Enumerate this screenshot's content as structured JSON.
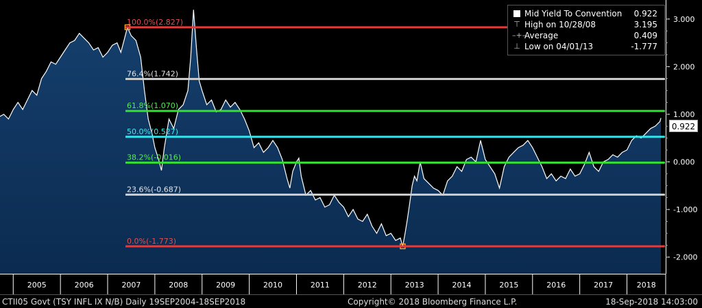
{
  "chart_data": {
    "type": "line",
    "title": "",
    "xlabel": "",
    "ylabel": "",
    "ylim": [
      -2.35,
      3.4
    ],
    "x_ticks": [
      "2005",
      "2006",
      "2007",
      "2008",
      "2009",
      "2010",
      "2011",
      "2012",
      "2013",
      "2014",
      "2015",
      "2016",
      "2017",
      "2018"
    ],
    "y_ticks": [
      "3.000",
      "2.000",
      "1.000",
      "0.000",
      "-1.000",
      "-2.000"
    ],
    "current_value": "0.922",
    "grid": false,
    "legend_placement": "top-right",
    "series": [
      {
        "name": "Mid Yield To Convention",
        "color": "#ffffff",
        "fill": "#0b2b50",
        "points": [
          [
            2004.71,
            0.95
          ],
          [
            2004.8,
            1.0
          ],
          [
            2004.9,
            0.9
          ],
          [
            2005.0,
            1.1
          ],
          [
            2005.1,
            1.25
          ],
          [
            2005.2,
            1.1
          ],
          [
            2005.3,
            1.3
          ],
          [
            2005.4,
            1.5
          ],
          [
            2005.5,
            1.4
          ],
          [
            2005.6,
            1.75
          ],
          [
            2005.7,
            1.9
          ],
          [
            2005.8,
            2.1
          ],
          [
            2005.9,
            2.05
          ],
          [
            2006.0,
            2.2
          ],
          [
            2006.1,
            2.35
          ],
          [
            2006.2,
            2.5
          ],
          [
            2006.3,
            2.55
          ],
          [
            2006.4,
            2.7
          ],
          [
            2006.5,
            2.6
          ],
          [
            2006.6,
            2.5
          ],
          [
            2006.7,
            2.35
          ],
          [
            2006.8,
            2.4
          ],
          [
            2006.9,
            2.2
          ],
          [
            2007.0,
            2.3
          ],
          [
            2007.1,
            2.45
          ],
          [
            2007.2,
            2.5
          ],
          [
            2007.28,
            2.3
          ],
          [
            2007.36,
            2.6
          ],
          [
            2007.42,
            2.83
          ],
          [
            2007.5,
            2.65
          ],
          [
            2007.6,
            2.55
          ],
          [
            2007.7,
            2.2
          ],
          [
            2007.78,
            1.5
          ],
          [
            2007.86,
            0.9
          ],
          [
            2007.94,
            0.6
          ],
          [
            2008.0,
            0.3
          ],
          [
            2008.08,
            0.05
          ],
          [
            2008.14,
            -0.18
          ],
          [
            2008.2,
            0.3
          ],
          [
            2008.3,
            0.9
          ],
          [
            2008.4,
            0.7
          ],
          [
            2008.5,
            1.1
          ],
          [
            2008.6,
            1.2
          ],
          [
            2008.7,
            1.5
          ],
          [
            2008.76,
            2.2
          ],
          [
            2008.82,
            3.195
          ],
          [
            2008.88,
            2.4
          ],
          [
            2008.94,
            1.7
          ],
          [
            2009.0,
            1.5
          ],
          [
            2009.1,
            1.2
          ],
          [
            2009.2,
            1.3
          ],
          [
            2009.3,
            1.05
          ],
          [
            2009.4,
            1.1
          ],
          [
            2009.5,
            1.3
          ],
          [
            2009.6,
            1.15
          ],
          [
            2009.7,
            1.25
          ],
          [
            2009.8,
            1.1
          ],
          [
            2009.9,
            0.9
          ],
          [
            2010.0,
            0.65
          ],
          [
            2010.1,
            0.3
          ],
          [
            2010.2,
            0.4
          ],
          [
            2010.3,
            0.2
          ],
          [
            2010.4,
            0.3
          ],
          [
            2010.5,
            0.45
          ],
          [
            2010.6,
            0.3
          ],
          [
            2010.7,
            0.05
          ],
          [
            2010.8,
            -0.35
          ],
          [
            2010.86,
            -0.55
          ],
          [
            2010.92,
            -0.2
          ],
          [
            2011.0,
            0.0
          ],
          [
            2011.05,
            0.08
          ],
          [
            2011.1,
            -0.3
          ],
          [
            2011.2,
            -0.7
          ],
          [
            2011.3,
            -0.6
          ],
          [
            2011.4,
            -0.8
          ],
          [
            2011.5,
            -0.75
          ],
          [
            2011.6,
            -0.95
          ],
          [
            2011.7,
            -0.9
          ],
          [
            2011.8,
            -0.7
          ],
          [
            2011.9,
            -0.85
          ],
          [
            2012.0,
            -0.95
          ],
          [
            2012.1,
            -1.15
          ],
          [
            2012.2,
            -1.0
          ],
          [
            2012.3,
            -1.2
          ],
          [
            2012.4,
            -1.25
          ],
          [
            2012.5,
            -1.1
          ],
          [
            2012.6,
            -1.35
          ],
          [
            2012.7,
            -1.5
          ],
          [
            2012.8,
            -1.3
          ],
          [
            2012.9,
            -1.55
          ],
          [
            2013.0,
            -1.5
          ],
          [
            2013.1,
            -1.65
          ],
          [
            2013.2,
            -1.6
          ],
          [
            2013.25,
            -1.777
          ],
          [
            2013.3,
            -1.5
          ],
          [
            2013.35,
            -1.2
          ],
          [
            2013.4,
            -0.85
          ],
          [
            2013.45,
            -0.5
          ],
          [
            2013.5,
            -0.3
          ],
          [
            2013.55,
            -0.4
          ],
          [
            2013.62,
            0.0
          ],
          [
            2013.7,
            -0.35
          ],
          [
            2013.8,
            -0.45
          ],
          [
            2013.9,
            -0.55
          ],
          [
            2014.0,
            -0.6
          ],
          [
            2014.1,
            -0.7
          ],
          [
            2014.2,
            -0.4
          ],
          [
            2014.3,
            -0.3
          ],
          [
            2014.4,
            -0.1
          ],
          [
            2014.5,
            -0.2
          ],
          [
            2014.6,
            0.05
          ],
          [
            2014.7,
            0.1
          ],
          [
            2014.8,
            0.0
          ],
          [
            2014.9,
            0.45
          ],
          [
            2015.0,
            0.05
          ],
          [
            2015.1,
            -0.1
          ],
          [
            2015.2,
            -0.25
          ],
          [
            2015.3,
            -0.55
          ],
          [
            2015.4,
            -0.1
          ],
          [
            2015.5,
            0.1
          ],
          [
            2015.6,
            0.2
          ],
          [
            2015.7,
            0.3
          ],
          [
            2015.8,
            0.35
          ],
          [
            2015.9,
            0.45
          ],
          [
            2016.0,
            0.3
          ],
          [
            2016.1,
            0.1
          ],
          [
            2016.2,
            -0.1
          ],
          [
            2016.3,
            -0.35
          ],
          [
            2016.4,
            -0.25
          ],
          [
            2016.5,
            -0.4
          ],
          [
            2016.6,
            -0.3
          ],
          [
            2016.7,
            -0.35
          ],
          [
            2016.8,
            -0.15
          ],
          [
            2016.9,
            -0.3
          ],
          [
            2017.0,
            -0.25
          ],
          [
            2017.1,
            -0.05
          ],
          [
            2017.2,
            0.2
          ],
          [
            2017.3,
            -0.1
          ],
          [
            2017.4,
            -0.2
          ],
          [
            2017.5,
            0.0
          ],
          [
            2017.6,
            0.05
          ],
          [
            2017.7,
            0.15
          ],
          [
            2017.8,
            0.1
          ],
          [
            2017.9,
            0.2
          ],
          [
            2018.0,
            0.25
          ],
          [
            2018.1,
            0.45
          ],
          [
            2018.2,
            0.55
          ],
          [
            2018.3,
            0.5
          ],
          [
            2018.4,
            0.6
          ],
          [
            2018.5,
            0.7
          ],
          [
            2018.6,
            0.75
          ],
          [
            2018.7,
            0.85
          ],
          [
            2018.72,
            0.922
          ]
        ]
      }
    ],
    "fib_levels": [
      {
        "label": "100.0%(2.827)",
        "value": 2.827,
        "color": "#e53a3a",
        "label_color": "#e05050"
      },
      {
        "label": "76.4%(1.742)",
        "value": 1.742,
        "color": "#d0d0d0",
        "label_color": "#e6e6e6"
      },
      {
        "label": "61.8%(1.070)",
        "value": 1.07,
        "color": "#35e035",
        "label_color": "#58e858"
      },
      {
        "label": "50.0%(0.527)",
        "value": 0.527,
        "color": "#30e8f0",
        "label_color": "#40e8f0"
      },
      {
        "label": "38.2%(-0.016)",
        "value": -0.016,
        "color": "#35e035",
        "label_color": "#58e858"
      },
      {
        "label": "23.6%(-0.687)",
        "value": -0.687,
        "color": "#d0d0d0",
        "label_color": "#e6e6e6"
      },
      {
        "label": "0.0%(-1.773)",
        "value": -1.773,
        "color": "#e53a3a",
        "label_color": "#e05050"
      }
    ],
    "markers": [
      {
        "x": 2007.42,
        "y": 2.827,
        "color": "#ff9a2a"
      },
      {
        "x": 2013.25,
        "y": -1.773,
        "color": "#ff9a2a"
      }
    ]
  },
  "legend": {
    "rows": [
      {
        "label": "Mid Yield To Convention",
        "value": "0.922"
      },
      {
        "label": "High on 10/28/08",
        "value": "3.195"
      },
      {
        "label": "Average",
        "value": "0.409"
      },
      {
        "label": "Low on 04/01/13",
        "value": "-1.777"
      }
    ]
  },
  "footer": {
    "left": "CTII05 Govt (TSY INFL IX N/B)  Daily 19SEP2004-18SEP2018",
    "center": "Copyright© 2018 Bloomberg Finance L.P.",
    "right": "18-Sep-2018 14:03:00"
  },
  "colors": {
    "background": "#000000",
    "plot_fill": "#0b2b50",
    "dark_band": "#000000",
    "line": "#ffffff"
  }
}
